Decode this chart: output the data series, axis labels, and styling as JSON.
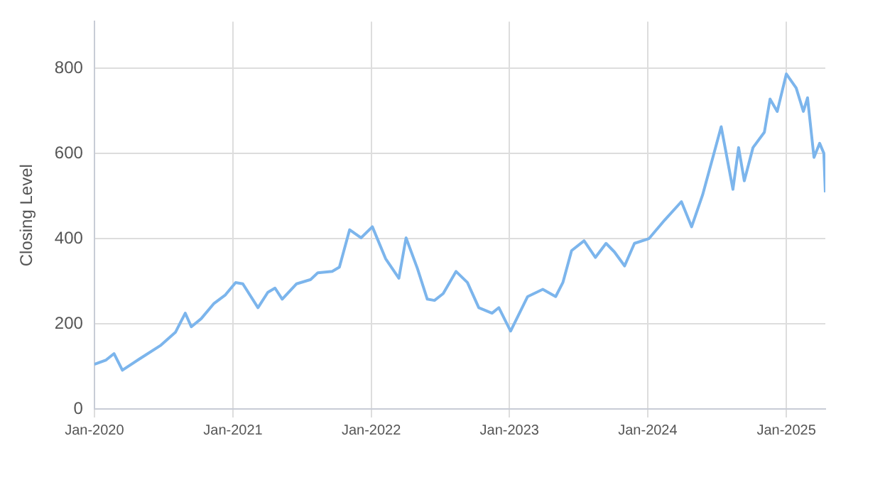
{
  "chart_data": {
    "type": "line",
    "ylabel": "Closing Level",
    "x": [
      "2020-01-01",
      "2020-02-01",
      "2020-02-22",
      "2020-03-15",
      "2020-04-30",
      "2020-06-25",
      "2020-08-02",
      "2020-08-28",
      "2020-09-13",
      "2020-10-09",
      "2020-11-12",
      "2020-12-12",
      "2021-01-08",
      "2021-01-27",
      "2021-03-08",
      "2021-04-03",
      "2021-04-22",
      "2021-05-11",
      "2021-06-18",
      "2021-07-25",
      "2021-08-13",
      "2021-09-20",
      "2021-10-09",
      "2021-11-05",
      "2021-12-05",
      "2022-01-04",
      "2022-02-08",
      "2022-03-15",
      "2022-04-03",
      "2022-05-03",
      "2022-05-29",
      "2022-06-17",
      "2022-07-10",
      "2022-08-13",
      "2022-09-12",
      "2022-10-12",
      "2022-11-16",
      "2022-12-04",
      "2023-01-04",
      "2023-02-18",
      "2023-03-30",
      "2023-05-03",
      "2023-05-22",
      "2023-06-14",
      "2023-07-17",
      "2023-08-16",
      "2023-09-13",
      "2023-10-05",
      "2023-11-01",
      "2023-11-27",
      "2024-01-04",
      "2024-02-15",
      "2024-03-30",
      "2024-04-26",
      "2024-05-25",
      "2024-06-21",
      "2024-07-13",
      "2024-08-13",
      "2024-08-28",
      "2024-09-12",
      "2024-10-05",
      "2024-11-04",
      "2024-11-19",
      "2024-12-08",
      "2025-01-01",
      "2025-01-27",
      "2025-02-15",
      "2025-02-26",
      "2025-03-15",
      "2025-03-30",
      "2025-04-10",
      "2025-04-14"
    ],
    "series": [
      {
        "color": "#7cb5ec",
        "values": [
          105,
          115,
          130,
          91,
          118,
          150,
          180,
          225,
          193,
          212,
          248,
          268,
          297,
          294,
          238,
          274,
          284,
          258,
          294,
          304,
          320,
          323,
          333,
          421,
          402,
          428,
          353,
          307,
          402,
          330,
          258,
          255,
          271,
          323,
          297,
          238,
          225,
          238,
          183,
          264,
          281,
          264,
          297,
          372,
          395,
          356,
          389,
          369,
          336,
          389,
          400,
          444,
          487,
          428,
          503,
          591,
          663,
          516,
          614,
          536,
          614,
          650,
          728,
          699,
          787,
          754,
          699,
          731,
          591,
          624,
          601,
          509
        ]
      }
    ],
    "xlim": [
      "2020-01-01",
      "2025-04-14"
    ],
    "xticks": [
      {
        "value": "2020-01-01",
        "label": "Jan-2020"
      },
      {
        "value": "2021-01-01",
        "label": "Jan-2021"
      },
      {
        "value": "2022-01-01",
        "label": "Jan-2022"
      },
      {
        "value": "2023-01-01",
        "label": "Jan-2023"
      },
      {
        "value": "2024-01-01",
        "label": "Jan-2024"
      },
      {
        "value": "2025-01-01",
        "label": "Jan-2025"
      }
    ],
    "ylim": [
      0,
      910
    ],
    "yticks": [
      0,
      200,
      400,
      600,
      800
    ],
    "grid": true,
    "legend": false,
    "marker": "none",
    "line_style": "solid"
  }
}
